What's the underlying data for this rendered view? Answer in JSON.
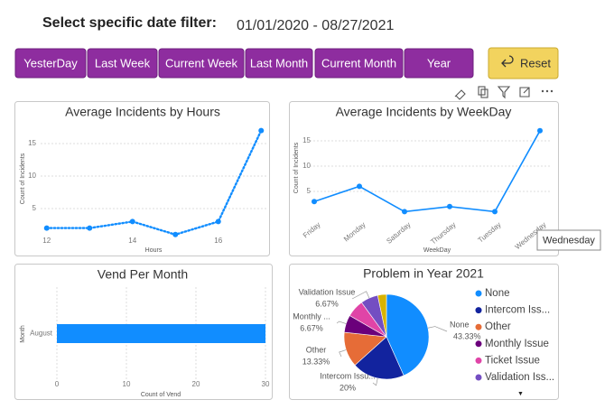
{
  "header": {
    "title": "Select specific date filter:",
    "date_range": "01/01/2020 - 08/27/2021"
  },
  "buttons": [
    "YesterDay",
    "Last Week",
    "Current Week",
    "Last Month",
    "Current Month",
    "Year"
  ],
  "reset": "Reset",
  "tooltip": "Wednesday",
  "chart_data": [
    {
      "type": "line",
      "title": "Average Incidents by Hours",
      "x_label": "Hours",
      "y_label": "Count of Incidents",
      "x": [
        12,
        13,
        14,
        15,
        16,
        17
      ],
      "values": [
        2,
        2,
        3,
        1,
        3,
        17
      ],
      "color": "#118DFF",
      "line_style": "dotted",
      "markers": true,
      "xlim": [
        11.9,
        17.1
      ],
      "xticks": [
        12,
        14,
        16
      ],
      "ylim": [
        0,
        18
      ],
      "yticks": [
        5,
        10,
        15
      ],
      "grid": true
    },
    {
      "type": "line",
      "title": "Average Incidents by WeekDay",
      "x_label": "WeekDay",
      "y_label": "Count of Incidents",
      "categories": [
        "Friday",
        "Monday",
        "Saturday",
        "Thursday",
        "Tuesday",
        "Wednesday"
      ],
      "values": [
        3,
        6,
        1,
        2,
        1,
        17
      ],
      "color": "#118DFF",
      "line_style": "solid",
      "markers": true,
      "ylim": [
        0,
        18
      ],
      "yticks": [
        5,
        10,
        15
      ],
      "grid": true
    },
    {
      "type": "barh",
      "title": "Vend Per Month",
      "x_label": "Count of Vend",
      "y_label": "Month",
      "categories": [
        "August"
      ],
      "values": [
        30
      ],
      "color": "#118DFF",
      "xlim": [
        0,
        30
      ],
      "xticks": [
        0,
        10,
        20,
        30
      ],
      "grid": true
    },
    {
      "type": "pie",
      "title": "Problem in Year 2021",
      "categories": [
        "None",
        "Intercom Iss...",
        "Other",
        "Monthly Issue",
        "Ticket Issue",
        "Validation Iss...",
        null
      ],
      "slice_labels": [
        "None",
        "Intercom Issu...",
        "Other",
        "Monthly ...",
        null,
        "Validation Issue",
        null
      ],
      "values": [
        43.33,
        20,
        13.33,
        6.67,
        6.67,
        6.67,
        3.33
      ],
      "value_labels": [
        "43.33%",
        "20%",
        "13.33%",
        "6.67%",
        null,
        "6.67%",
        null
      ],
      "colors": [
        "#118DFF",
        "#12239E",
        "#E66C37",
        "#6B007B",
        "#E044A7",
        "#744EC2",
        "#D9B300"
      ]
    }
  ]
}
